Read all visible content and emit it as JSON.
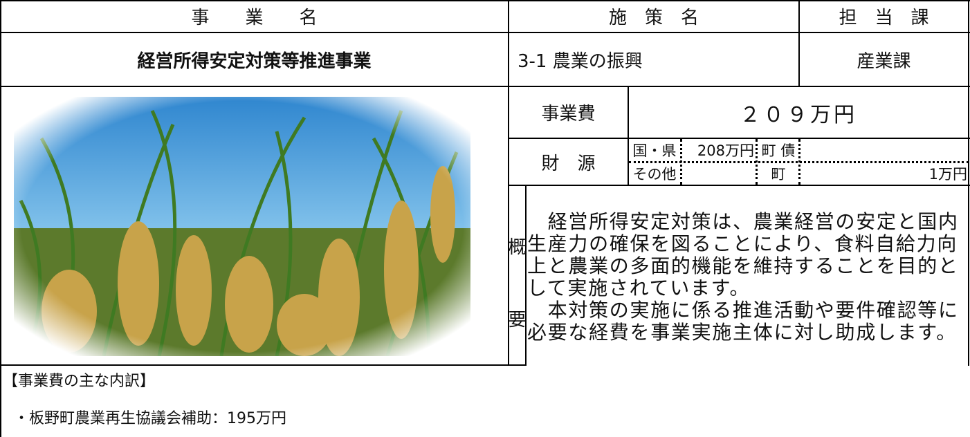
{
  "header": {
    "project_label": "事　　業　　名",
    "policy_label": "施　策　名",
    "dept_label": "担　当　課"
  },
  "project": {
    "name": "経営所得安定対策等推進事業",
    "policy": "3-1 農業の振興",
    "dept": "産業課"
  },
  "cost": {
    "label": "事業費",
    "value": "２０９万円"
  },
  "funding": {
    "label": "財　源",
    "national_label": "国・県",
    "national_value": "208万円",
    "bond_label": "町 債",
    "other_label": "その他",
    "town_label": "町",
    "town_value": "1万円"
  },
  "summary": {
    "label_1": "概",
    "label_2": "要",
    "paragraphs": [
      "　経営所得安定対策は、農業経営の安定と国内生産力の確保を図ることにより、食料自給力向上と農業の多面的機能を維持することを目的として実施されています。",
      "　本対策の実施に係る推進活動や要件確認等に必要な経費を事業実施主体に対し助成します。"
    ]
  },
  "breakdown": {
    "title": "【事業費の主な内訳】",
    "items": [
      "・板野町農業再生協議会補助：195万円"
    ]
  }
}
